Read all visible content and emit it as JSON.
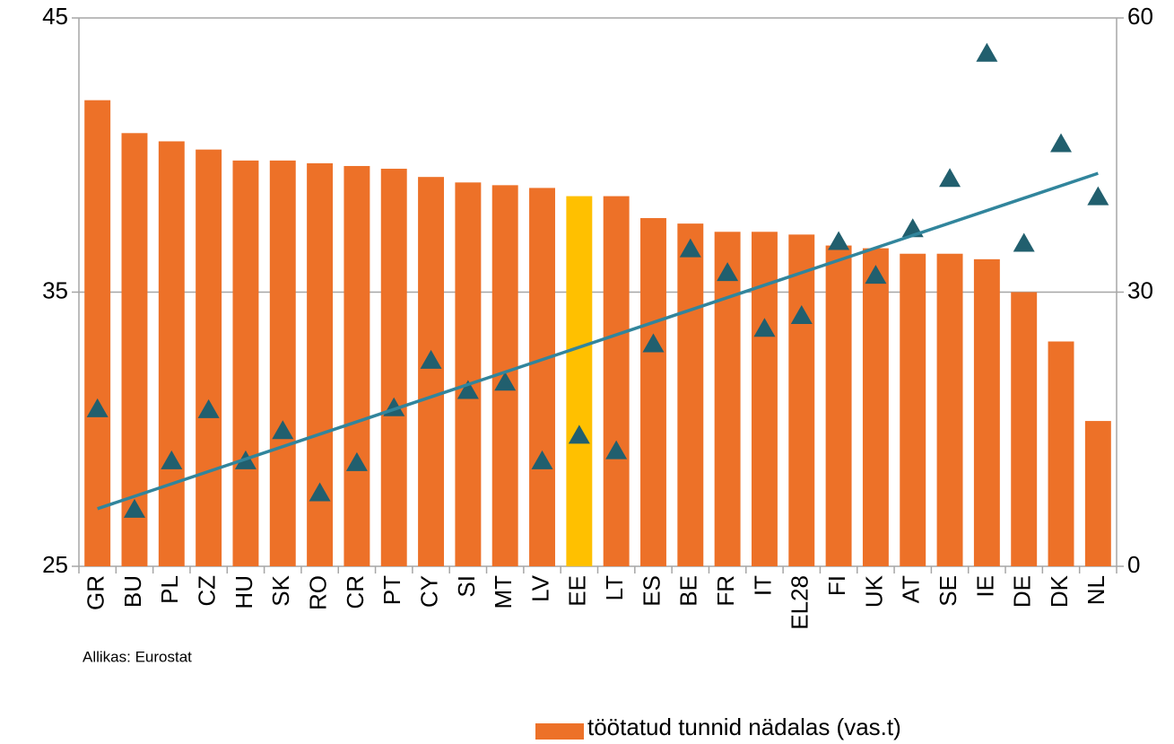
{
  "chart_data": {
    "type": "bar",
    "categories": [
      "GR",
      "BU",
      "PL",
      "CZ",
      "HU",
      "SK",
      "RO",
      "CR",
      "PT",
      "CY",
      "SI",
      "MT",
      "LV",
      "EE",
      "LT",
      "ES",
      "BE",
      "FR",
      "IT",
      "EL28",
      "FI",
      "UK",
      "AT",
      "SE",
      "IE",
      "DE",
      "DK",
      "NL"
    ],
    "series": [
      {
        "name": "töötatud tunnid nädalas (vas.t)",
        "type": "bar",
        "axis": "y",
        "color": "#ed7128",
        "colors": [
          "#ed7128",
          "#ed7128",
          "#ed7128",
          "#ed7128",
          "#ed7128",
          "#ed7128",
          "#ed7128",
          "#ed7128",
          "#ed7128",
          "#ed7128",
          "#ed7128",
          "#ed7128",
          "#ed7128",
          "#ffc000",
          "#ed7128",
          "#ed7128",
          "#ed7128",
          "#ed7128",
          "#ed7128",
          "#ed7128",
          "#ed7128",
          "#ed7128",
          "#ed7128",
          "#ed7128",
          "#ed7128",
          "#ed7128",
          "#ed7128",
          "#ed7128"
        ],
        "values": [
          42.0,
          40.8,
          40.5,
          40.2,
          39.8,
          39.8,
          39.7,
          39.6,
          39.5,
          39.2,
          39.0,
          38.9,
          38.8,
          38.5,
          38.5,
          37.7,
          37.5,
          37.2,
          37.2,
          37.1,
          36.7,
          36.6,
          36.4,
          36.4,
          36.2,
          35.0,
          33.2,
          30.3
        ]
      },
      {
        "type": "scatter",
        "marker": "triangle",
        "axis": "y2",
        "color": "#215f6e",
        "values": [
          17.3,
          6.3,
          11.6,
          17.2,
          11.6,
          14.9,
          8.1,
          11.4,
          17.4,
          22.6,
          19.3,
          20.2,
          11.6,
          14.4,
          12.7,
          24.4,
          34.8,
          32.2,
          26.1,
          27.5,
          35.6,
          31.9,
          37.0,
          42.5,
          56.2,
          35.4,
          46.3,
          40.5
        ]
      }
    ],
    "trendline": {
      "axis": "y2",
      "color": "#31859c",
      "values": [
        6.3,
        43.0
      ]
    },
    "ylim": [
      25,
      45
    ],
    "yticks": [
      25,
      35,
      45
    ],
    "y2lim": [
      0,
      60
    ],
    "y2ticks": [
      0,
      30,
      60
    ],
    "grid": true,
    "source": "Allikas:  Eurostat"
  }
}
